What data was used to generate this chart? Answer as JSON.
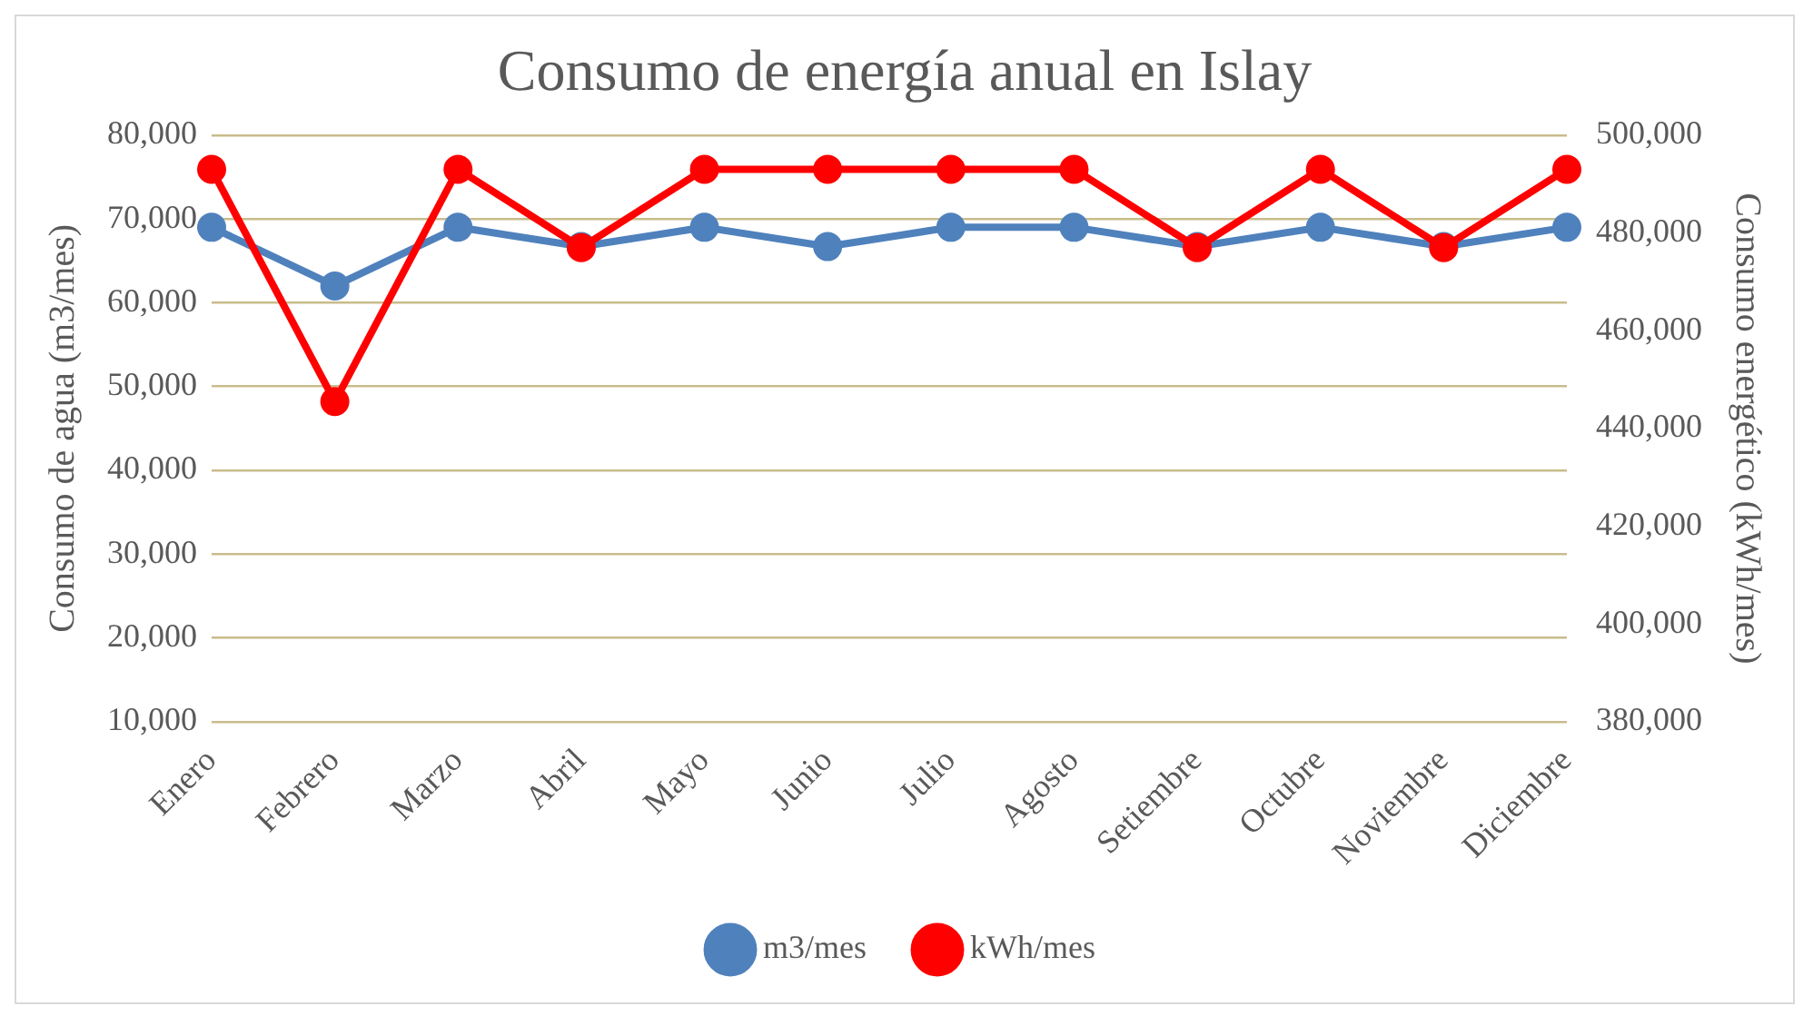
{
  "chart_data": {
    "type": "line",
    "title": "Consumo de energía anual en Islay",
    "ylabel": "Consumo de agua (m3/mes)",
    "y2label": "Consumo energético (kWh/mes)",
    "categories": [
      "Enero",
      "Febrero",
      "Marzo",
      "Abril",
      "Mayo",
      "Junio",
      "Julio",
      "Agosto",
      "Setiembre",
      "Octubre",
      "Noviembre",
      "Diciembre"
    ],
    "series": [
      {
        "name": "m3/mes",
        "color": "#4f81bd",
        "values": [
          69000,
          62000,
          69000,
          66700,
          69000,
          66700,
          69000,
          69000,
          66700,
          69000,
          66700,
          69000
        ]
      },
      {
        "name": "kWh/mes",
        "color": "#ff0000",
        "axis": "y2",
        "values": [
          493000,
          445500,
          493000,
          477000,
          493000,
          493000,
          493000,
          493000,
          477000,
          493000,
          477000,
          493000
        ]
      }
    ],
    "ylim": [
      10000,
      80000
    ],
    "yticks": [
      {
        "value": 10000,
        "label": "10,000"
      },
      {
        "value": 20000,
        "label": "20,000"
      },
      {
        "value": 30000,
        "label": "30,000"
      },
      {
        "value": 40000,
        "label": "40,000"
      },
      {
        "value": 50000,
        "label": "50,000"
      },
      {
        "value": 60000,
        "label": "60,000"
      },
      {
        "value": 70000,
        "label": "70,000"
      },
      {
        "value": 80000,
        "label": "80,000"
      }
    ],
    "y2lim": [
      380000,
      500000
    ],
    "y2ticks": [
      {
        "value": 380000,
        "label": "380,000"
      },
      {
        "value": 400000,
        "label": "400,000"
      },
      {
        "value": 420000,
        "label": "420,000"
      },
      {
        "value": 440000,
        "label": "440,000"
      },
      {
        "value": 460000,
        "label": "460,000"
      },
      {
        "value": 480000,
        "label": "480,000"
      },
      {
        "value": 500000,
        "label": "500,000"
      }
    ],
    "grid": "y",
    "legend": "bottom",
    "marker": "circle",
    "line_style": "solid"
  }
}
